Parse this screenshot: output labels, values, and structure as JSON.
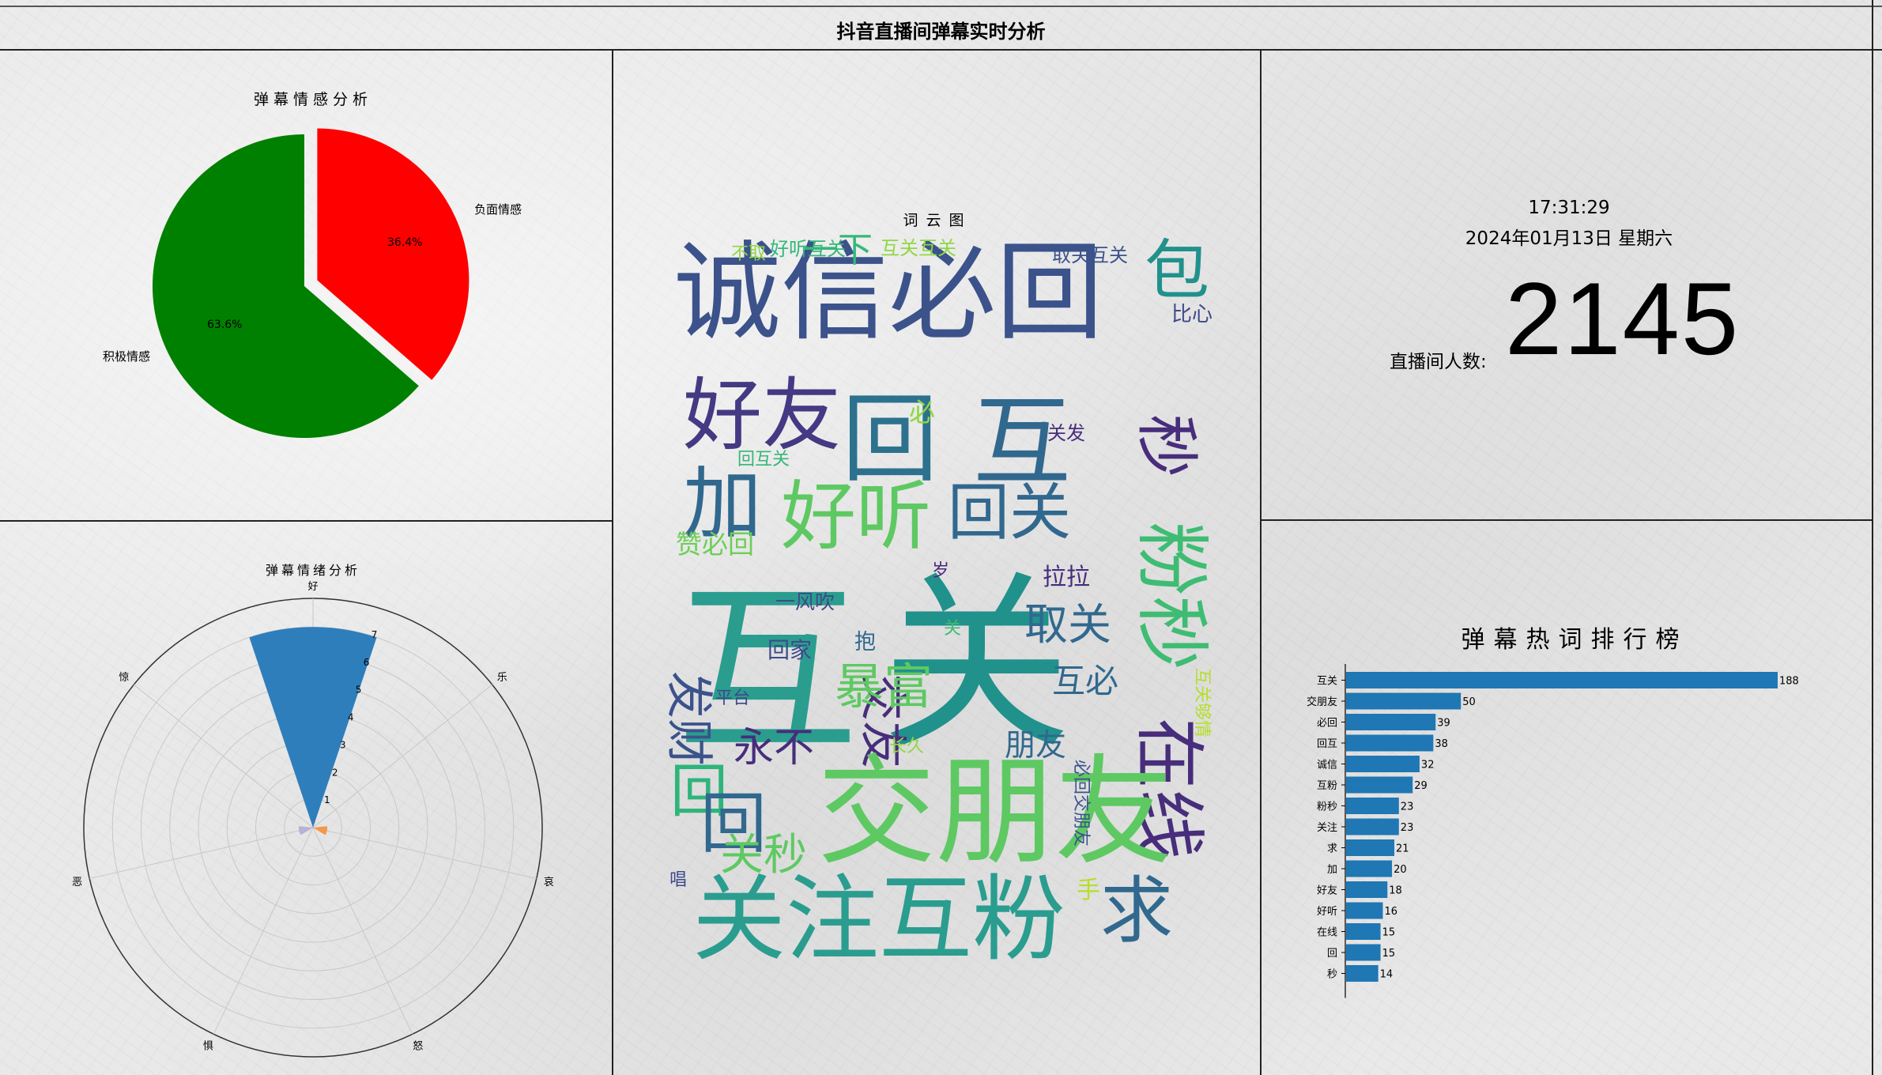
{
  "page": {
    "title": "抖音直播间弹幕实时分析"
  },
  "sentiment": {
    "title": "弹幕情感分析",
    "slices": [
      {
        "label": "负面情感",
        "pct_label": "36.4%",
        "value": 36.4,
        "color": "#ff0000"
      },
      {
        "label": "积极情感",
        "pct_label": "63.6%",
        "value": 63.6,
        "color": "#008000"
      }
    ]
  },
  "emotion": {
    "title": "弹幕情绪分析",
    "axes": [
      "好",
      "乐",
      "哀",
      "怒",
      "惧",
      "恶",
      "惊"
    ],
    "rticks": [
      "1",
      "2",
      "3",
      "4",
      "5",
      "6",
      "7"
    ],
    "values": [
      7,
      0,
      0.5,
      0,
      0,
      0.5,
      0
    ],
    "colors": [
      "#2e7ebc",
      "#f2994a",
      "#f2994a",
      "#d9534f",
      "#888888",
      "#b3b3d6",
      "#6baed6"
    ]
  },
  "wordcloud": {
    "title": "词云图",
    "words": [
      {
        "t": "诚信必回",
        "c": "#3b528b"
      },
      {
        "t": "包",
        "c": "#21918c"
      },
      {
        "t": "秒",
        "c": "#472d7b"
      },
      {
        "t": "比心",
        "c": "#3e4989"
      },
      {
        "t": "取关互关",
        "c": "#3b528b"
      },
      {
        "t": "一下",
        "c": "#35b779"
      },
      {
        "t": "互关互关",
        "c": "#90d743"
      },
      {
        "t": "好听互关",
        "c": "#35b779"
      },
      {
        "t": "不取",
        "c": "#90d743"
      },
      {
        "t": "好友",
        "c": "#443983"
      },
      {
        "t": "回",
        "c": "#2c728e"
      },
      {
        "t": "互",
        "c": "#31688e"
      },
      {
        "t": "必",
        "c": "#90d743"
      },
      {
        "t": "关发",
        "c": "#472d7b"
      },
      {
        "t": "加",
        "c": "#31688e"
      },
      {
        "t": "回互关",
        "c": "#35b779"
      },
      {
        "t": "好听",
        "c": "#5ec962"
      },
      {
        "t": "回关",
        "c": "#31688e"
      },
      {
        "t": "粉秒",
        "c": "#3fbc73"
      },
      {
        "t": "赞必回",
        "c": "#6ece58"
      },
      {
        "t": "互",
        "c": "#2a9d8f"
      },
      {
        "t": "关",
        "c": "#21918c"
      },
      {
        "t": "拉拉",
        "c": "#472d7b"
      },
      {
        "t": "一风吹",
        "c": "#3e4989"
      },
      {
        "t": "交友",
        "c": "#472d7b"
      },
      {
        "t": "岁",
        "c": "#482878"
      },
      {
        "t": "发财",
        "c": "#3b528b"
      },
      {
        "t": "取关",
        "c": "#31688e"
      },
      {
        "t": "在线",
        "c": "#472d7b"
      },
      {
        "t": "抱",
        "c": "#31688e"
      },
      {
        "t": "关",
        "c": "#3fbc73"
      },
      {
        "t": "回家",
        "c": "#3e4989"
      },
      {
        "t": "暴富",
        "c": "#5ec962"
      },
      {
        "t": "互必",
        "c": "#31688e"
      },
      {
        "t": "平台",
        "c": "#3e4989"
      },
      {
        "t": "互关够情",
        "c": "#b5de2b"
      },
      {
        "t": "朋友",
        "c": "#31688e"
      },
      {
        "t": "永不",
        "c": "#472d7b"
      },
      {
        "t": "回",
        "c": "#2fb47c"
      },
      {
        "t": "回",
        "c": "#31688e"
      },
      {
        "t": "长久",
        "c": "#90d743"
      },
      {
        "t": "交朋友",
        "c": "#5ec962"
      },
      {
        "t": "必回交朋友",
        "c": "#3b528b"
      },
      {
        "t": "关秒",
        "c": "#5ec962"
      },
      {
        "t": "唱",
        "c": "#3e4989"
      },
      {
        "t": "手",
        "c": "#b5de2b"
      },
      {
        "t": "关注互粉",
        "c": "#2a9d8f"
      },
      {
        "t": "求",
        "c": "#31688e"
      }
    ]
  },
  "clock": {
    "time": "17:31:29",
    "date": "2024年01月13日 星期六",
    "viewer_label": "直播间人数:",
    "viewer_count": "2145"
  },
  "hotwords": {
    "title": "弹幕热词排行榜",
    "bar_color": "#1f77b4"
  },
  "chart_data": [
    {
      "type": "pie",
      "title": "弹幕情感分析",
      "categories": [
        "负面情感",
        "积极情感"
      ],
      "values": [
        36.4,
        63.6
      ]
    },
    {
      "type": "bar",
      "title": "弹幕情绪分析",
      "categories": [
        "好",
        "乐",
        "哀",
        "怒",
        "惧",
        "恶",
        "惊"
      ],
      "values": [
        7,
        0,
        0.5,
        0,
        0,
        0.5,
        0
      ]
    },
    {
      "type": "bar",
      "title": "弹幕热词排行榜",
      "categories": [
        "互关",
        "交朋友",
        "必回",
        "回互",
        "诚信",
        "互粉",
        "粉秒",
        "关注",
        "求",
        "加",
        "好友",
        "好听",
        "在线",
        "回",
        "秒"
      ],
      "values": [
        188,
        50,
        39,
        38,
        32,
        29,
        23,
        23,
        21,
        20,
        18,
        16,
        15,
        15,
        14
      ]
    }
  ]
}
